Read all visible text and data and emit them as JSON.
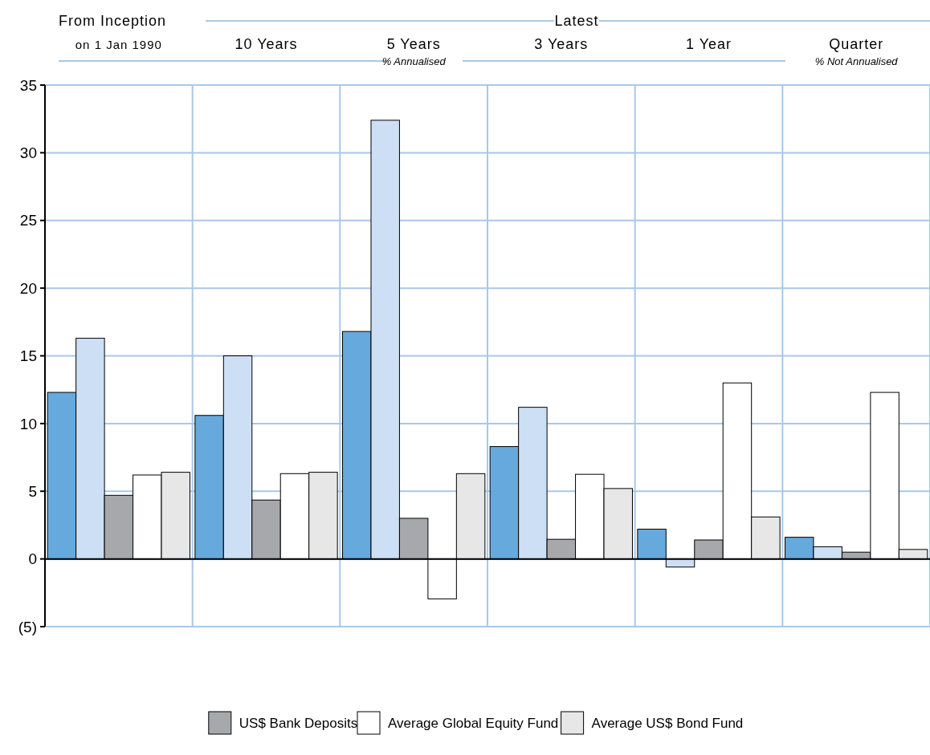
{
  "chart_data": {
    "type": "bar",
    "categories": [
      "on 1 Jan 1990",
      "10  Years",
      "5 Years",
      "3 Years",
      "1 Year",
      "Quarter"
    ],
    "series": [
      {
        "color": "#66a9dc",
        "values": [
          12.3,
          10.6,
          16.8,
          8.3,
          2.2,
          1.6
        ]
      },
      {
        "color": "#cddff4",
        "values": [
          16.3,
          15.0,
          32.4,
          11.2,
          -0.6,
          0.9
        ]
      },
      {
        "name": "US$ Bank Deposits",
        "color": "#a7a8ab",
        "values": [
          4.7,
          4.35,
          3.0,
          1.45,
          1.4,
          0.5
        ]
      },
      {
        "name": "Average Global Equity Fund",
        "color": "#ffffff",
        "values": [
          6.2,
          6.3,
          -2.95,
          6.25,
          13.0,
          12.3
        ]
      },
      {
        "name": "Average US$ Bond Fund",
        "color": "#e6e7e6",
        "values": [
          6.4,
          6.4,
          6.3,
          5.2,
          3.1,
          0.7
        ]
      }
    ],
    "ylim": [
      -5,
      35
    ],
    "yticks": [
      {
        "value": -5,
        "label": "(5)"
      },
      0,
      5,
      10,
      15,
      20,
      25,
      30,
      35
    ],
    "grid": true,
    "legend": "bottom",
    "annotations": [
      "From Inception",
      "Latest",
      "% Annualised",
      "% Not Annualised"
    ]
  }
}
